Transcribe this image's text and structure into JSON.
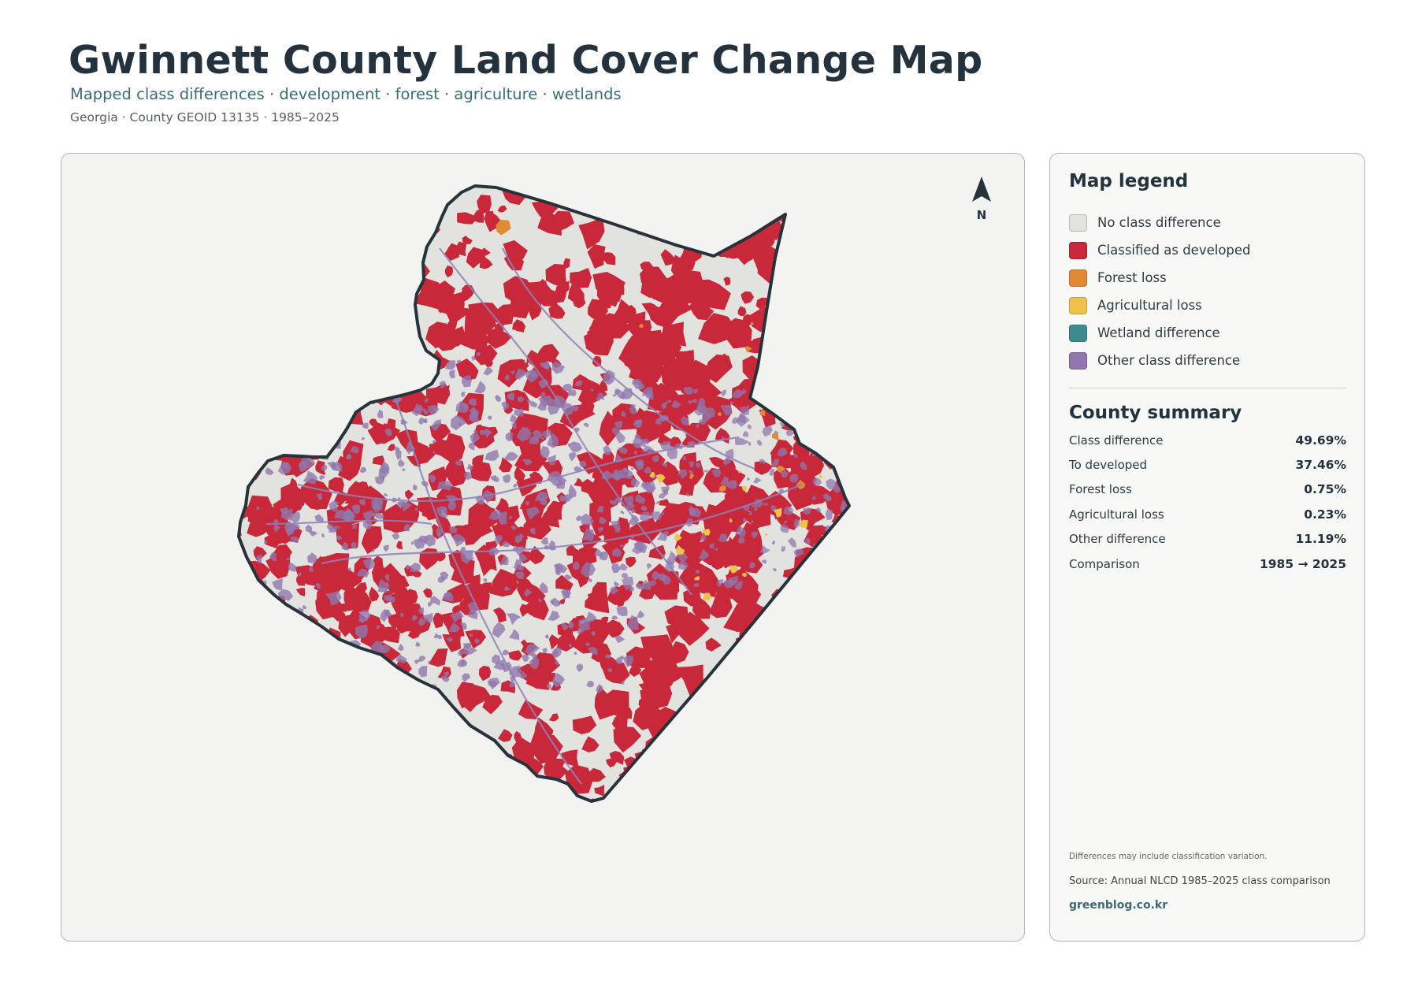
{
  "header": {
    "title": "Gwinnett County Land Cover Change Map",
    "subtitle": "Mapped class differences · development · forest · agriculture · wetlands",
    "meta": "Georgia · County GEOID 13135 · 1985–2025"
  },
  "map": {
    "north_label": "N",
    "colors": {
      "background": "#f3f3f1",
      "county_fill": "#e2e2df",
      "outline": "#26333b",
      "developed": "#c8283a",
      "forest_loss": "#e08a36",
      "agricultural_loss": "#f0c24a",
      "wetland": "#3f8a8e",
      "other": "#9078ae"
    }
  },
  "legend": {
    "title": "Map legend",
    "items": [
      {
        "label": "No class difference",
        "color": "#e2e2df"
      },
      {
        "label": "Classified as developed",
        "color": "#c8283a"
      },
      {
        "label": "Forest loss",
        "color": "#e08a36"
      },
      {
        "label": "Agricultural loss",
        "color": "#f0c24a"
      },
      {
        "label": "Wetland difference",
        "color": "#3f8a8e"
      },
      {
        "label": "Other class difference",
        "color": "#9078ae"
      }
    ]
  },
  "summary": {
    "title": "County summary",
    "rows": [
      {
        "label": "Class difference",
        "value": "49.69%"
      },
      {
        "label": "To developed",
        "value": "37.46%"
      },
      {
        "label": "Forest loss",
        "value": "0.75%"
      },
      {
        "label": "Agricultural loss",
        "value": "0.23%"
      },
      {
        "label": "Other difference",
        "value": "11.19%"
      },
      {
        "label": "Comparison",
        "value": "1985 → 2025"
      }
    ]
  },
  "footer": {
    "note": "Differences may include classification variation.",
    "source": "Source: Annual NLCD 1985–2025 class comparison",
    "site": "greenblog.co.kr"
  }
}
